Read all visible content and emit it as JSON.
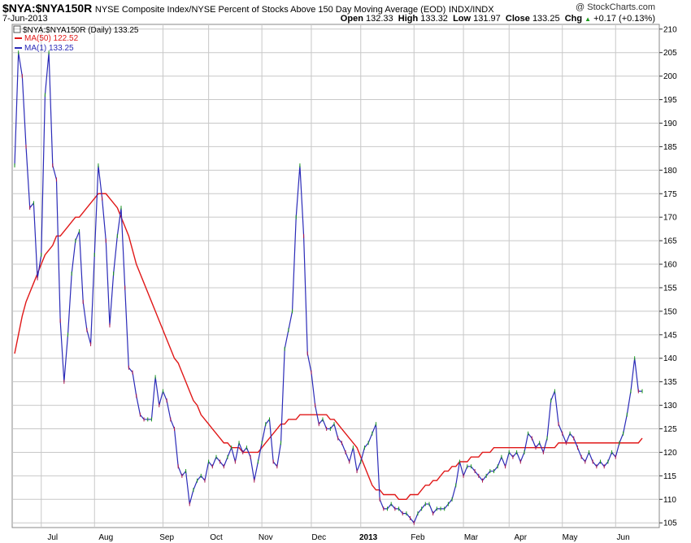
{
  "header": {
    "symbol": "$NYA:$NYA150R",
    "description": "NYSE Composite Index/NYSE Percent of Stocks Above 150 Day Moving Average (EOD)",
    "exchange": "INDX/INDX",
    "date": "7-Jun-2013",
    "credit": "@ StockCharts.com",
    "open_label": "Open",
    "open": "132.33",
    "high_label": "High",
    "high": "133.32",
    "low_label": "Low",
    "low": "131.97",
    "close_label": "Close",
    "close": "133.25",
    "chg_label": "Chg",
    "chg": "+0.17 (+0.13%)",
    "chg_arrow": "▲"
  },
  "legend": {
    "main": "$NYA:$NYA150R (Daily) 133.25",
    "ma50": "MA(50) 122.52",
    "ma1": "MA(1) 133.25"
  },
  "colors": {
    "price": "#2b2bb8",
    "ma50": "#e01818",
    "up": "#1a9a1a",
    "down": "#b0184a",
    "grid": "#c8c8c8"
  },
  "chart_data": {
    "type": "line",
    "ylim": [
      104,
      211
    ],
    "y_ticks": [
      105,
      110,
      115,
      120,
      125,
      130,
      135,
      140,
      145,
      150,
      155,
      160,
      165,
      170,
      175,
      180,
      185,
      190,
      195,
      200,
      205,
      210
    ],
    "x_labels": [
      "Jul",
      "Aug",
      "Sep",
      "Oct",
      "Nov",
      "Dec",
      "2013",
      "Feb",
      "Mar",
      "Apr",
      "May",
      "Jun"
    ],
    "x_label_idx": [
      10,
      24,
      40,
      53,
      66,
      80,
      93,
      106,
      120,
      133,
      146,
      160
    ],
    "x_grid_idx": [
      7,
      21,
      39,
      51,
      65,
      78,
      91,
      105,
      118,
      130,
      144,
      158
    ],
    "series": [
      {
        "name": "$NYA:$NYA150R",
        "values": [
          181,
          205,
          200,
          185,
          172,
          173,
          157,
          162,
          196,
          205,
          181,
          178,
          148,
          135,
          145,
          158,
          165,
          167,
          152,
          146,
          143,
          162,
          181,
          174,
          165,
          147,
          158,
          166,
          172,
          155,
          138,
          137,
          132,
          128,
          127,
          127,
          127,
          136,
          130,
          133,
          131,
          127,
          125,
          117,
          115,
          116,
          109,
          112,
          114,
          115,
          114,
          118,
          117,
          119,
          118,
          117,
          119,
          121,
          118,
          122,
          120,
          121,
          119,
          114,
          118,
          122,
          126,
          127,
          118,
          117,
          122,
          142,
          146,
          150,
          170,
          181,
          166,
          141,
          137,
          130,
          126,
          127,
          125,
          125,
          126,
          123,
          122,
          120,
          118,
          121,
          116,
          118,
          121,
          122,
          124,
          126,
          110,
          108,
          108,
          109,
          108,
          108,
          107,
          107,
          106,
          105,
          107,
          108,
          109,
          109,
          107,
          108,
          108,
          108,
          109,
          110,
          113,
          118,
          115,
          117,
          117,
          116,
          115,
          114,
          115,
          116,
          116,
          117,
          119,
          117,
          120,
          119,
          120,
          118,
          120,
          124,
          123,
          121,
          122,
          120,
          123,
          131,
          133,
          126,
          124,
          122,
          124,
          123,
          121,
          119,
          118,
          120,
          118,
          117,
          118,
          117,
          118,
          120,
          119,
          122,
          124,
          128,
          133,
          140,
          133,
          133
        ],
        "color": "#2b2bb8"
      },
      {
        "name": "MA(50)",
        "values": [
          141,
          145,
          149,
          152,
          154,
          156,
          158,
          160,
          162,
          163,
          164,
          166,
          166,
          167,
          168,
          169,
          170,
          170,
          171,
          172,
          173,
          174,
          175,
          175,
          175,
          174,
          173,
          172,
          170,
          168,
          166,
          163,
          160,
          158,
          156,
          154,
          152,
          150,
          148,
          146,
          144,
          142,
          140,
          139,
          137,
          135,
          133,
          131,
          130,
          128,
          127,
          126,
          125,
          124,
          123,
          122,
          122,
          121,
          121,
          121,
          120,
          120,
          120,
          120,
          120,
          121,
          122,
          123,
          124,
          125,
          126,
          126,
          127,
          127,
          127,
          128,
          128,
          128,
          128,
          128,
          128,
          128,
          128,
          127,
          127,
          126,
          125,
          124,
          123,
          122,
          121,
          119,
          117,
          115,
          113,
          112,
          112,
          111,
          111,
          111,
          111,
          110,
          110,
          110,
          111,
          111,
          111,
          112,
          113,
          113,
          114,
          114,
          115,
          116,
          116,
          117,
          117,
          118,
          118,
          118,
          119,
          119,
          119,
          120,
          120,
          120,
          121,
          121,
          121,
          121,
          121,
          121,
          121,
          121,
          121,
          121,
          121,
          121,
          121,
          121,
          121,
          121,
          121,
          122,
          122,
          122,
          122,
          122,
          122,
          122,
          122,
          122,
          122,
          122,
          122,
          122,
          122,
          122,
          122,
          122,
          122,
          122,
          122,
          122,
          122,
          123
        ],
        "color": "#e01818"
      }
    ]
  }
}
